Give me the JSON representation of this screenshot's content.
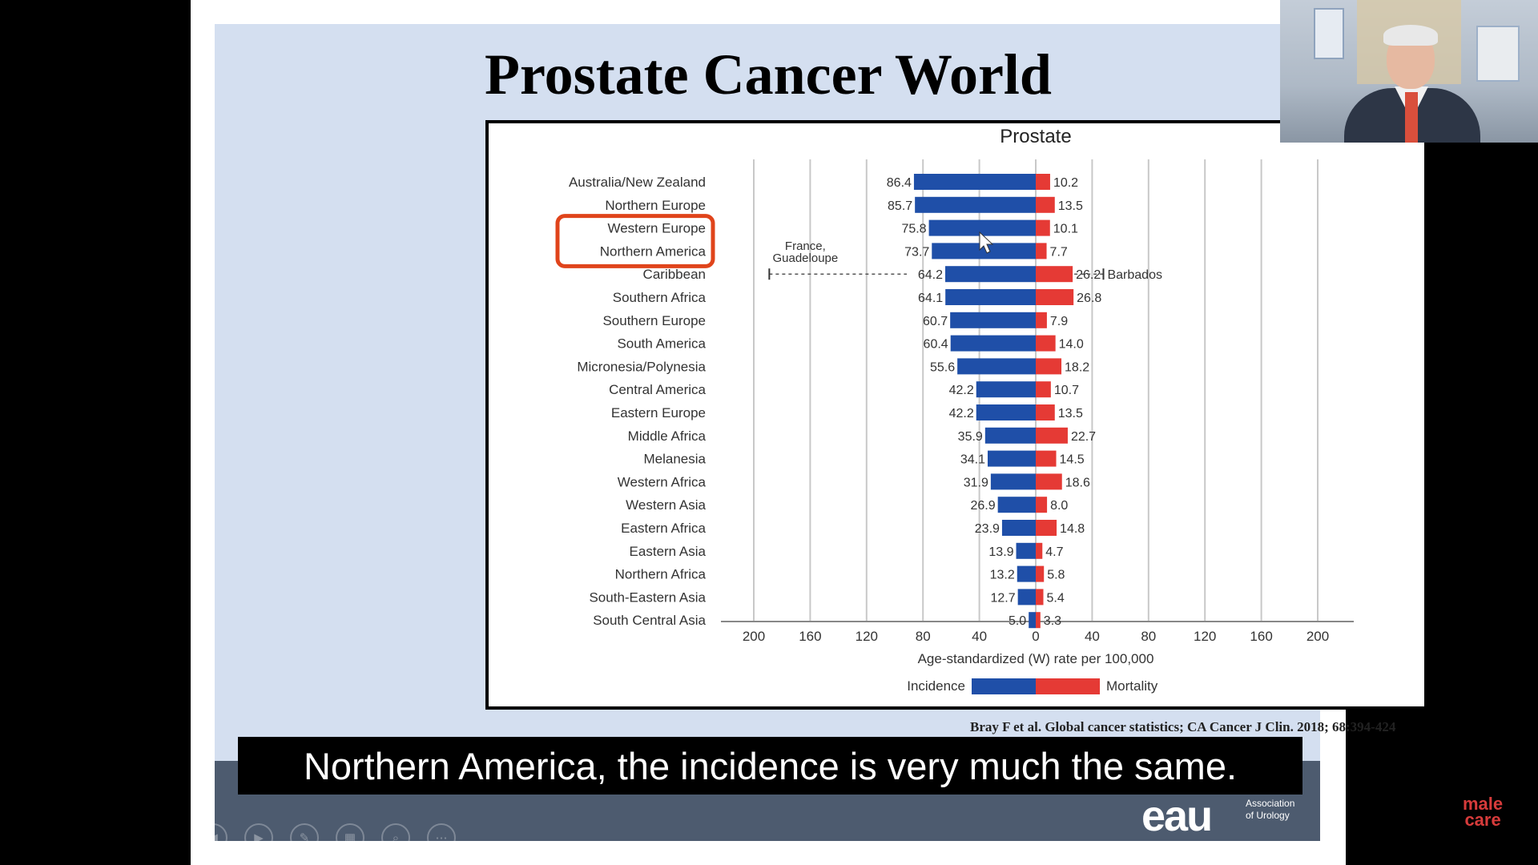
{
  "slide": {
    "title": "Prostate Cancer World",
    "citation": "Bray F et al. Global cancer statistics; CA Cancer J Clin. 2018; 68:394-424"
  },
  "chart_data": {
    "type": "bar",
    "title": "Prostate",
    "xlabel": "Age-standardized (W) rate per 100,000",
    "ylabel": "",
    "xlim": [
      -200,
      200
    ],
    "tick_values": [
      -200,
      -160,
      -120,
      -80,
      -40,
      0,
      40,
      80,
      120,
      160,
      200
    ],
    "tick_labels": [
      "200",
      "160",
      "120",
      "80",
      "40",
      "0",
      "40",
      "80",
      "120",
      "160",
      "200"
    ],
    "grid": true,
    "legend": "bottom-center",
    "categories": [
      "Australia/New Zealand",
      "Northern Europe",
      "Western Europe",
      "Northern America",
      "Caribbean",
      "Southern Africa",
      "Southern Europe",
      "South America",
      "Micronesia/Polynesia",
      "Central America",
      "Eastern Europe",
      "Middle Africa",
      "Melanesia",
      "Western Africa",
      "Western Asia",
      "Eastern Africa",
      "Eastern Asia",
      "Northern Africa",
      "South-Eastern Asia",
      "South Central Asia"
    ],
    "series": [
      {
        "name": "Incidence",
        "color": "#1f4fa8",
        "values": [
          86.4,
          85.7,
          75.8,
          73.7,
          64.2,
          64.1,
          60.7,
          60.4,
          55.6,
          42.2,
          42.2,
          35.9,
          34.1,
          31.9,
          26.9,
          23.9,
          13.9,
          13.2,
          12.7,
          5.0
        ],
        "labels": [
          "86.4",
          "85.7",
          "75.8",
          "73.7",
          "64.2",
          "64.1",
          "60.7",
          "60.4",
          "55.6",
          "42.2",
          "42.2",
          "35.9",
          "34.1",
          "31.9",
          "26.9",
          "23.9",
          "13.9",
          "13.2",
          "12.7",
          "5.0"
        ]
      },
      {
        "name": "Mortality",
        "color": "#e53a35",
        "values": [
          10.2,
          13.5,
          10.1,
          7.7,
          26.2,
          26.8,
          7.9,
          14.0,
          18.2,
          10.7,
          13.5,
          22.7,
          14.5,
          18.6,
          8.0,
          14.8,
          4.7,
          5.8,
          5.4,
          3.3
        ],
        "labels": [
          "10.2",
          "13.5",
          "10.1",
          "7.7",
          "26.2",
          "26.8",
          "7.9",
          "14.0",
          "18.2",
          "10.7",
          "13.5",
          "22.7",
          "14.5",
          "18.6",
          "8.0",
          "14.8",
          "4.7",
          "5.8",
          "5.4",
          "3.3"
        ]
      }
    ],
    "annotations": [
      {
        "text": "France, Guadeloupe",
        "category": "Caribbean",
        "value": -189
      },
      {
        "text": "Barbados",
        "category": "Caribbean",
        "value": 48
      }
    ],
    "highlighted": [
      "Western Europe",
      "Northern America"
    ],
    "highlight_color": "#e0441b"
  },
  "player": {
    "subtitle": "Northern America, the incidence is very much the same.",
    "brand": [
      "male",
      "care"
    ]
  },
  "logo": {
    "mark": "eau",
    "text": [
      "Association",
      "of Urology"
    ]
  }
}
